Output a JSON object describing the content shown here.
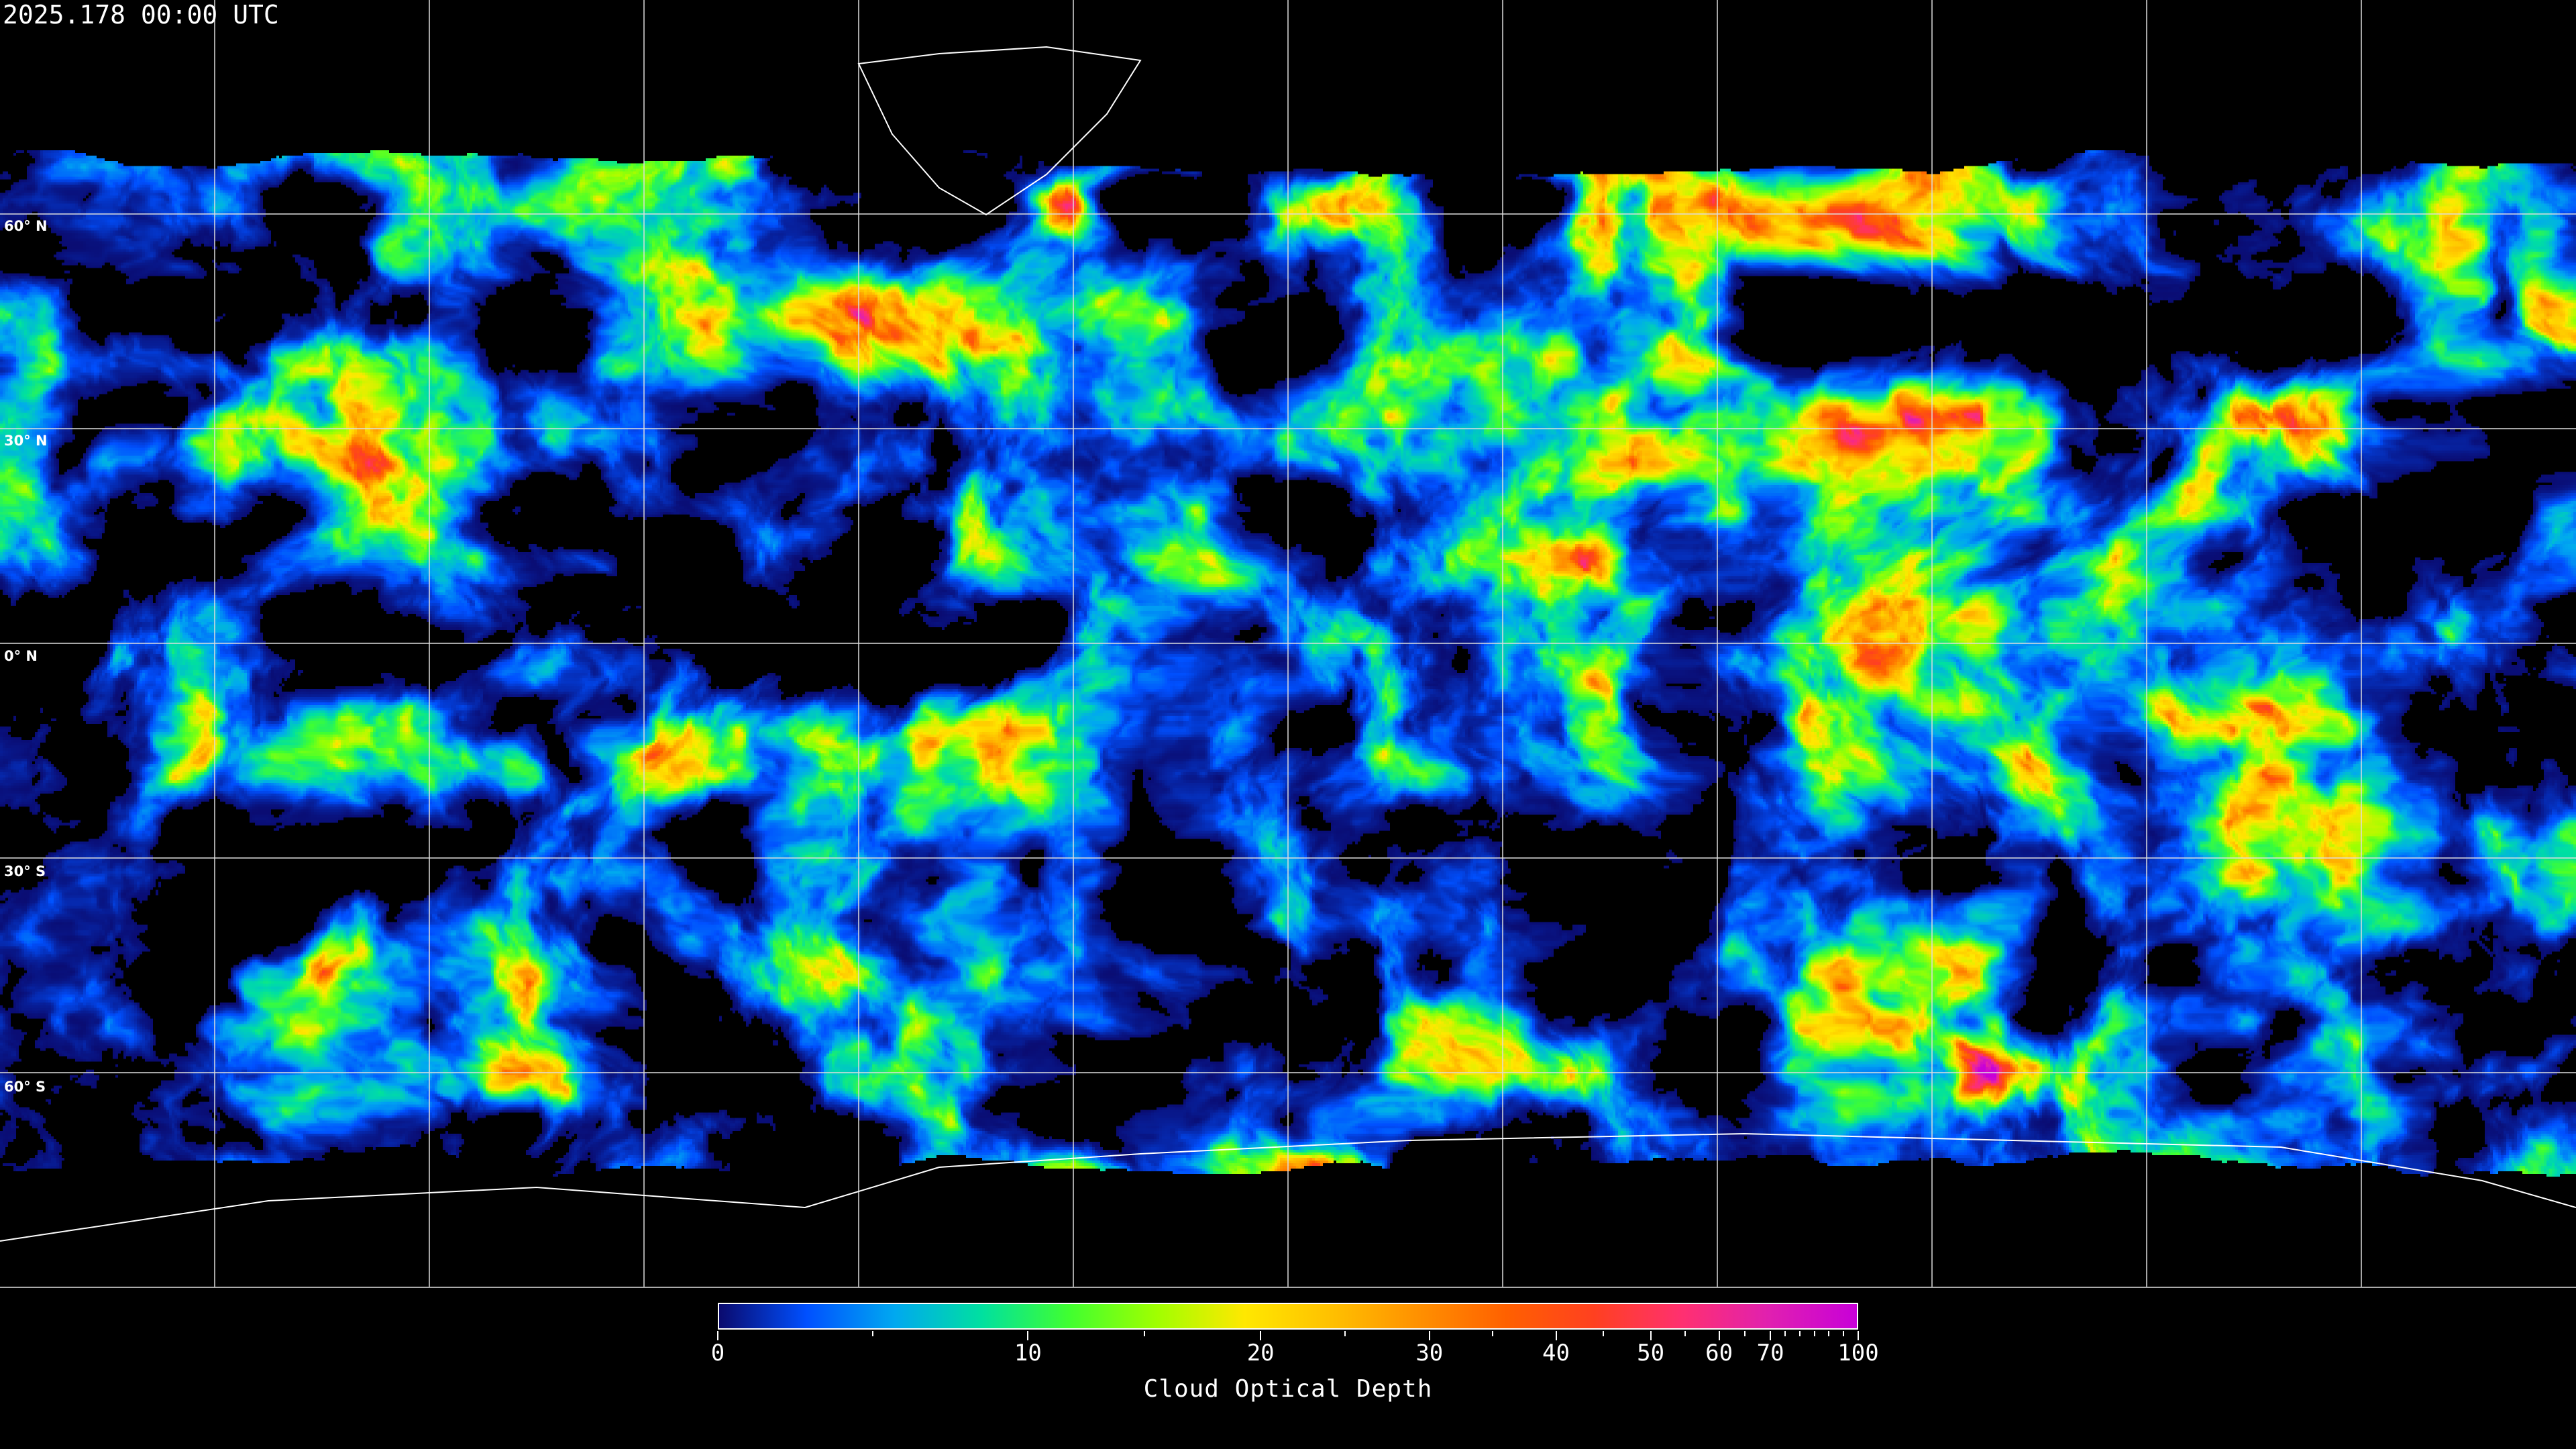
{
  "title": "2025.178 00:00 UTC",
  "latitude_labels": [
    "60° N",
    "30° N",
    "0° N",
    "30° S",
    "60° S"
  ],
  "colorbar": {
    "label": "Cloud Optical Depth",
    "min": 0,
    "max": 100,
    "tick_labels": [
      "0",
      "10",
      "20",
      "30",
      "40",
      "50",
      "60",
      "70",
      "100"
    ],
    "colors": [
      "#0a0a6e",
      "#0050ff",
      "#00a8f0",
      "#00e0a0",
      "#40ff30",
      "#a0ff00",
      "#ffe800",
      "#ffc000",
      "#ff9000",
      "#ff6000",
      "#ff4020",
      "#ff3070",
      "#e020b0",
      "#c800d8"
    ]
  },
  "map": {
    "projection": "equirectangular",
    "gridlines": "30° graticule",
    "coastlines": "white"
  }
}
